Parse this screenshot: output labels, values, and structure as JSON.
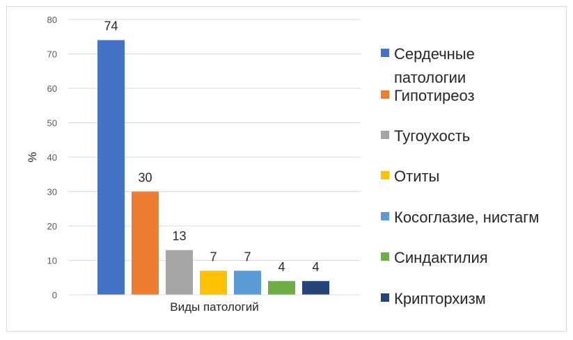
{
  "chart_data": {
    "type": "bar",
    "ylabel": "%",
    "xlabel": "Виды патологий",
    "ylim": [
      0,
      80
    ],
    "ytick_step": 10,
    "grid": true,
    "legend_position": "right",
    "series": [
      {
        "name": "Сердечные патологии",
        "value": 74,
        "color": "#4472c4"
      },
      {
        "name": "Гипотиреоз",
        "value": 30,
        "color": "#ed7d31"
      },
      {
        "name": "Тугоухость",
        "value": 13,
        "color": "#a5a5a5"
      },
      {
        "name": "Отиты",
        "value": 7,
        "color": "#ffc000"
      },
      {
        "name": "Косоглазие, нистагм",
        "value": 7,
        "color": "#5b9bd5"
      },
      {
        "name": "Синдактилия",
        "value": 4,
        "color": "#70ad47"
      },
      {
        "name": "Крипторхизм",
        "value": 4,
        "color": "#264478"
      }
    ]
  }
}
